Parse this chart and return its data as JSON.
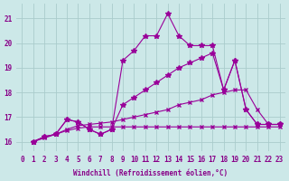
{
  "bg_color": "#cce8e8",
  "grid_color": "#aacccc",
  "line_color": "#990099",
  "marker_color": "#990099",
  "xlabel": "Windchill (Refroidissement éolien,°C)",
  "xlabel_color": "#880088",
  "tick_color": "#880088",
  "xlim": [
    -0.5,
    23.5
  ],
  "ylim": [
    15.6,
    21.6
  ],
  "yticks": [
    16,
    17,
    18,
    19,
    20,
    21
  ],
  "xticks": [
    0,
    1,
    2,
    3,
    4,
    5,
    6,
    7,
    8,
    9,
    10,
    11,
    12,
    13,
    14,
    15,
    16,
    17,
    18,
    19,
    20,
    21,
    22,
    23
  ],
  "series": [
    {
      "x": [
        1,
        2,
        3,
        4,
        5,
        6,
        7,
        8,
        9,
        10,
        11,
        12,
        13,
        14,
        15,
        16,
        17,
        18,
        19,
        20,
        21,
        22,
        23
      ],
      "y": [
        16.0,
        16.2,
        16.3,
        16.9,
        16.8,
        16.5,
        16.3,
        16.5,
        19.3,
        19.7,
        20.3,
        20.3,
        21.2,
        20.3,
        19.9,
        19.9,
        19.9,
        18.1,
        19.3,
        17.3,
        16.7,
        16.7,
        16.7
      ],
      "marker": "*",
      "markersize": 4,
      "linewidth": 0.8
    },
    {
      "x": [
        1,
        2,
        3,
        4,
        5,
        6,
        7,
        8,
        9,
        10,
        11,
        12,
        13,
        14,
        15,
        16,
        17,
        18,
        19,
        20,
        21,
        22,
        23
      ],
      "y": [
        16.0,
        16.2,
        16.3,
        16.9,
        16.8,
        16.5,
        16.3,
        16.5,
        17.5,
        17.8,
        18.1,
        18.4,
        18.7,
        19.0,
        19.2,
        19.4,
        19.6,
        18.1,
        19.3,
        17.3,
        16.7,
        16.7,
        16.7
      ],
      "marker": "*",
      "markersize": 4,
      "linewidth": 0.8
    },
    {
      "x": [
        1,
        2,
        3,
        4,
        5,
        6,
        7,
        8,
        9,
        10,
        11,
        12,
        13,
        14,
        15,
        16,
        17,
        18,
        19,
        20,
        21,
        22,
        23
      ],
      "y": [
        16.0,
        16.15,
        16.3,
        16.5,
        16.65,
        16.7,
        16.75,
        16.8,
        16.9,
        17.0,
        17.1,
        17.2,
        17.3,
        17.5,
        17.6,
        17.7,
        17.9,
        18.0,
        18.1,
        18.1,
        17.3,
        16.7,
        16.7
      ],
      "marker": "x",
      "markersize": 3,
      "linewidth": 0.8
    },
    {
      "x": [
        1,
        2,
        3,
        4,
        5,
        6,
        7,
        8,
        9,
        10,
        11,
        12,
        13,
        14,
        15,
        16,
        17,
        18,
        19,
        20,
        21,
        22,
        23
      ],
      "y": [
        16.0,
        16.2,
        16.3,
        16.45,
        16.55,
        16.6,
        16.6,
        16.6,
        16.6,
        16.6,
        16.6,
        16.6,
        16.6,
        16.6,
        16.6,
        16.6,
        16.6,
        16.6,
        16.6,
        16.6,
        16.6,
        16.6,
        16.6
      ],
      "marker": "x",
      "markersize": 3,
      "linewidth": 0.8
    }
  ]
}
